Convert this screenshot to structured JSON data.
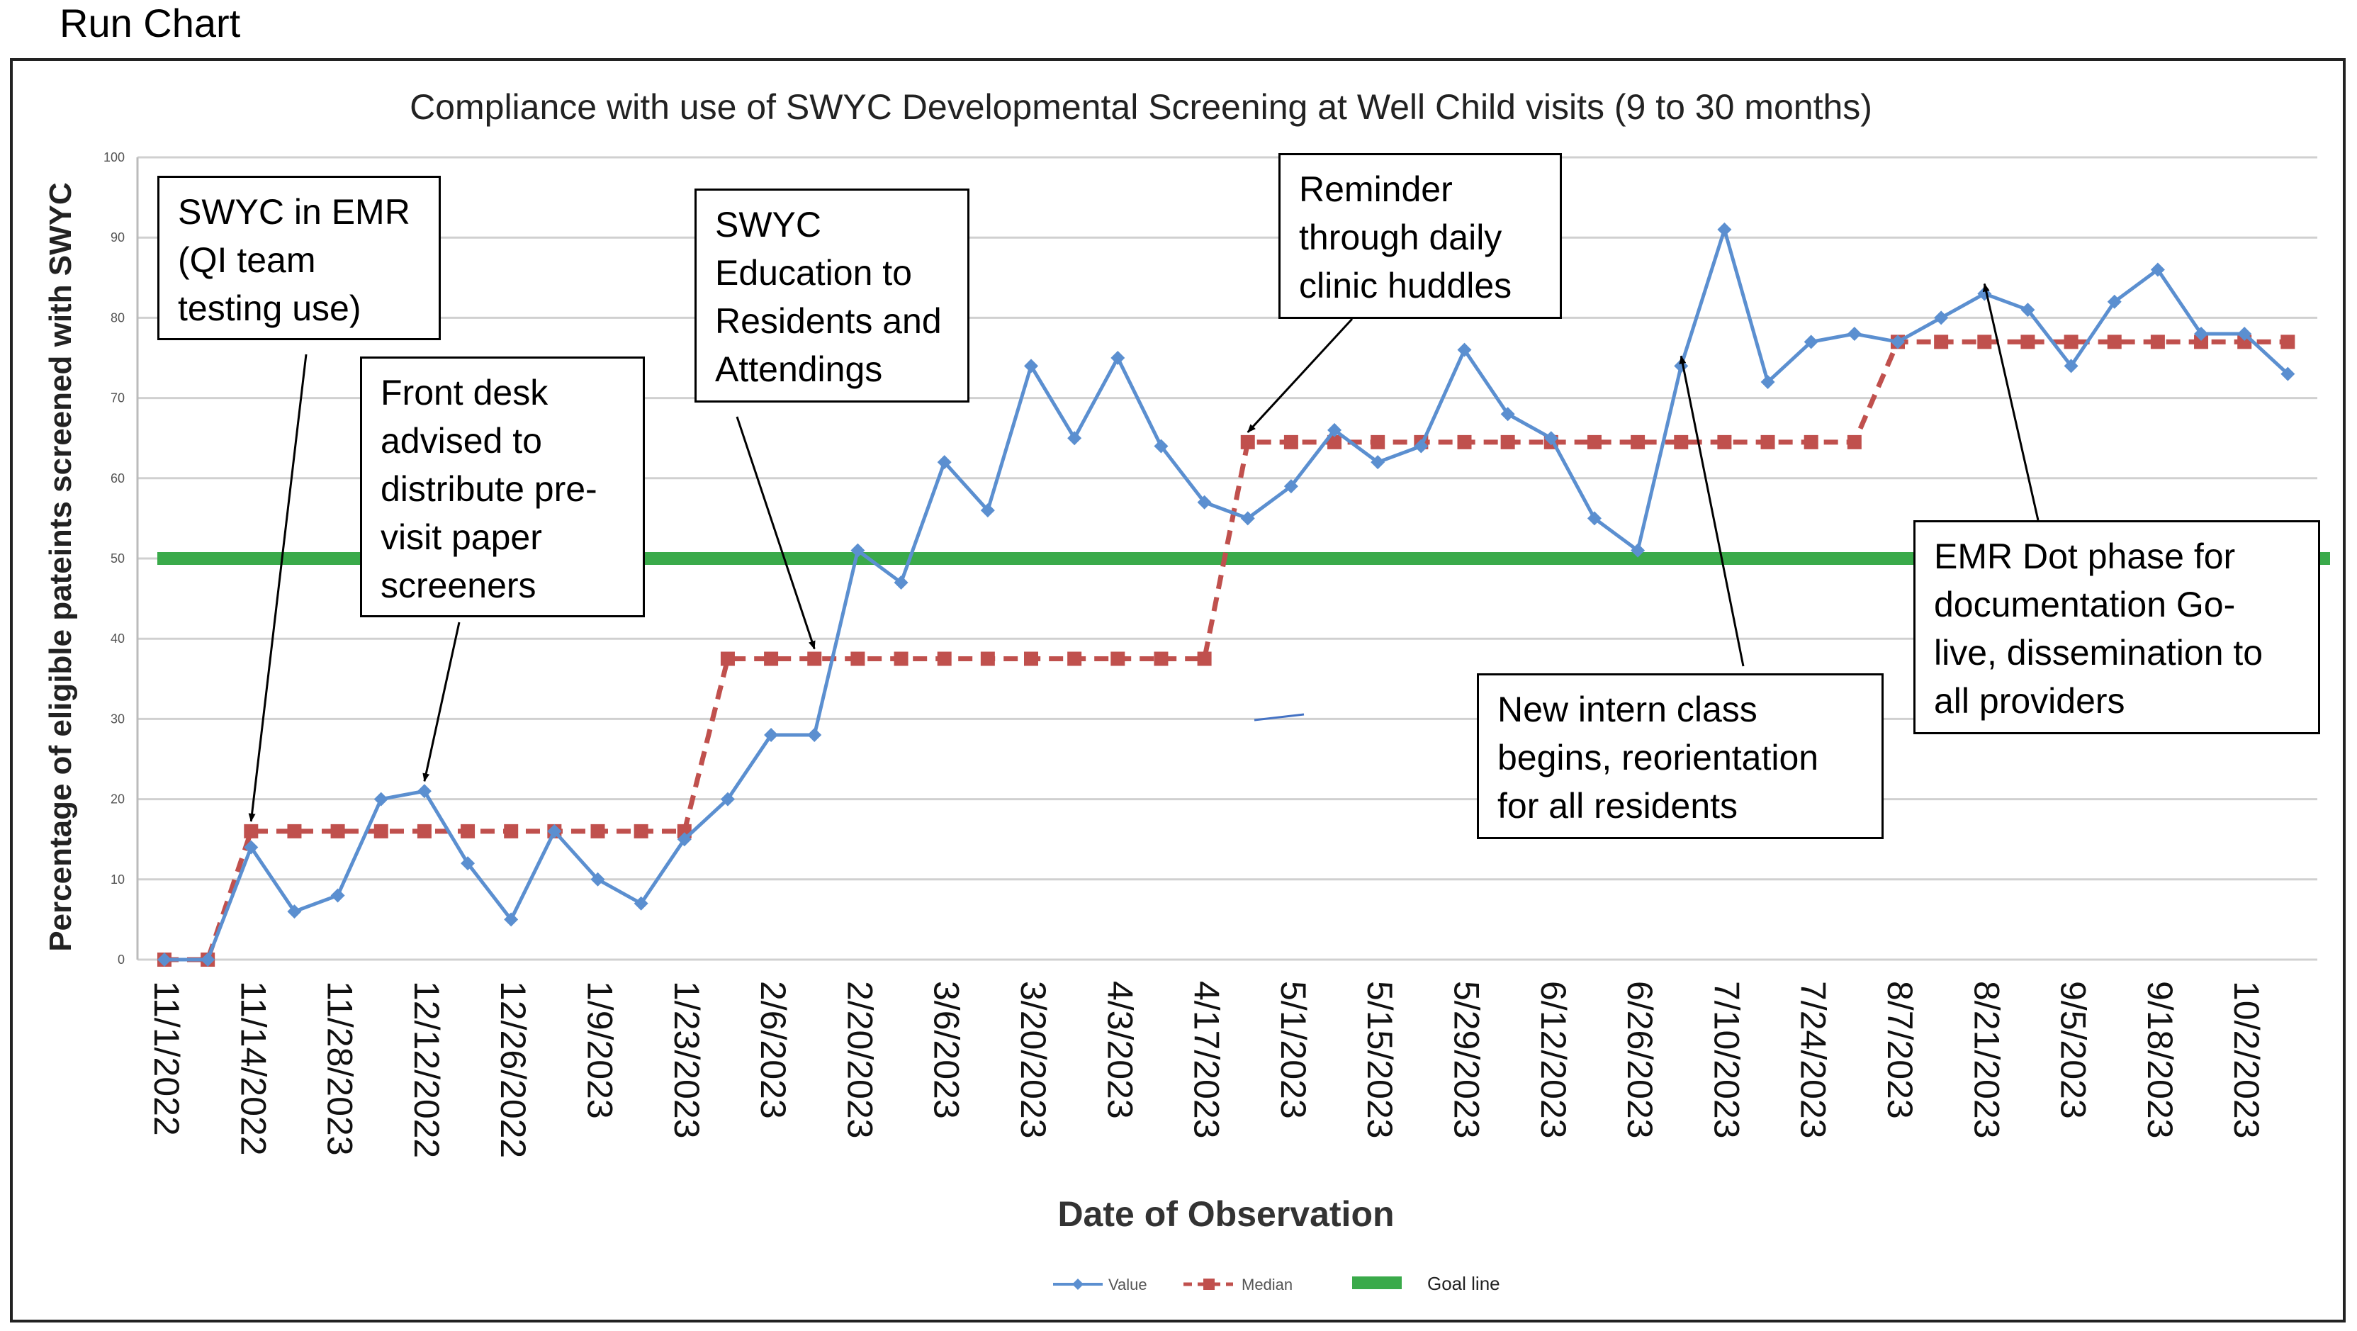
{
  "heading": "Run Chart",
  "chart_data": {
    "type": "line",
    "title": "Compliance with use of SWYC Developmental Screening at Well Child visits (9 to 30 months)",
    "xlabel": "Date of Observation",
    "ylabel": "Percentage of eligible pateints screened with SWYC",
    "ylim": [
      0,
      100
    ],
    "yticks": [
      "0",
      "10",
      "20",
      "30",
      "40",
      "50",
      "60",
      "70",
      "80",
      "90",
      "100"
    ],
    "grid": true,
    "legend_position": "bottom",
    "x_tick_labels": [
      "11/1/2022",
      "11/14/2022",
      "11/28/2023",
      "12/12/2022",
      "12/26/2022",
      "1/9/2023",
      "1/23/2023",
      "2/6/2023",
      "2/20/2023",
      "3/6/2023",
      "3/20/2023",
      "4/3/2023",
      "4/17/2023",
      "5/1/2023",
      "5/15/2023",
      "5/29/2023",
      "6/12/2023",
      "6/26/2023",
      "7/10/2023",
      "7/24/2023",
      "8/7/2023",
      "8/21/2023",
      "9/5/2023",
      "9/18/2023",
      "10/2/2023"
    ],
    "series": [
      {
        "name": "Value",
        "color": "#5b8fd0",
        "values": [
          0,
          0,
          14,
          6,
          8,
          20,
          21,
          12,
          5,
          16,
          10,
          7,
          15,
          20,
          28,
          28,
          51,
          47,
          62,
          56,
          74,
          65,
          75,
          64,
          57,
          55,
          59,
          66,
          62,
          64,
          76,
          68,
          65,
          55,
          51,
          74,
          91,
          72,
          77,
          78,
          77,
          80,
          83,
          81,
          74,
          82,
          86,
          78,
          78,
          73
        ]
      },
      {
        "name": "Median",
        "color": "#c0504d",
        "values": [
          0,
          0,
          16,
          16,
          16,
          16,
          16,
          16,
          16,
          16,
          16,
          16,
          16,
          37.5,
          37.5,
          37.5,
          37.5,
          37.5,
          37.5,
          37.5,
          37.5,
          37.5,
          37.5,
          37.5,
          37.5,
          64.5,
          64.5,
          64.5,
          64.5,
          64.5,
          64.5,
          64.5,
          64.5,
          64.5,
          64.5,
          64.5,
          64.5,
          64.5,
          64.5,
          64.5,
          77,
          77,
          77,
          77,
          77,
          77,
          77,
          77,
          77,
          77
        ]
      },
      {
        "name": "Goal line",
        "color": "#3aaa4a",
        "value": 50
      }
    ],
    "annotations": [
      {
        "text": "SWYC in EMR (QI team testing use)",
        "points_to_index": 2
      },
      {
        "text": "Front desk advised to distribute pre-visit paper screeners",
        "points_to_index": 6
      },
      {
        "text": "SWYC Education to Residents and Attendings",
        "points_to_index": 15
      },
      {
        "text": "Reminder through daily clinic huddles",
        "points_to_index": 25
      },
      {
        "text": "New intern class begins, reorientation for all residents",
        "points_to_index": 35
      },
      {
        "text": "EMR Dot phase for documentation Go-live, dissemination to all providers",
        "points_to_index": 42
      }
    ]
  },
  "callouts": {
    "c1": [
      "SWYC in EMR",
      "(QI team",
      "testing use)"
    ],
    "c2": [
      "Front desk",
      "advised to",
      "distribute pre-",
      "visit paper",
      "screeners"
    ],
    "c3": [
      "SWYC",
      "Education to",
      "Residents and",
      "Attendings"
    ],
    "c4": [
      "Reminder",
      "through daily",
      "clinic huddles"
    ],
    "c5": [
      "New intern class",
      "begins, reorientation",
      "for all residents"
    ],
    "c6": [
      "EMR Dot phase for",
      "documentation Go-",
      "live, dissemination to",
      "all providers"
    ]
  }
}
